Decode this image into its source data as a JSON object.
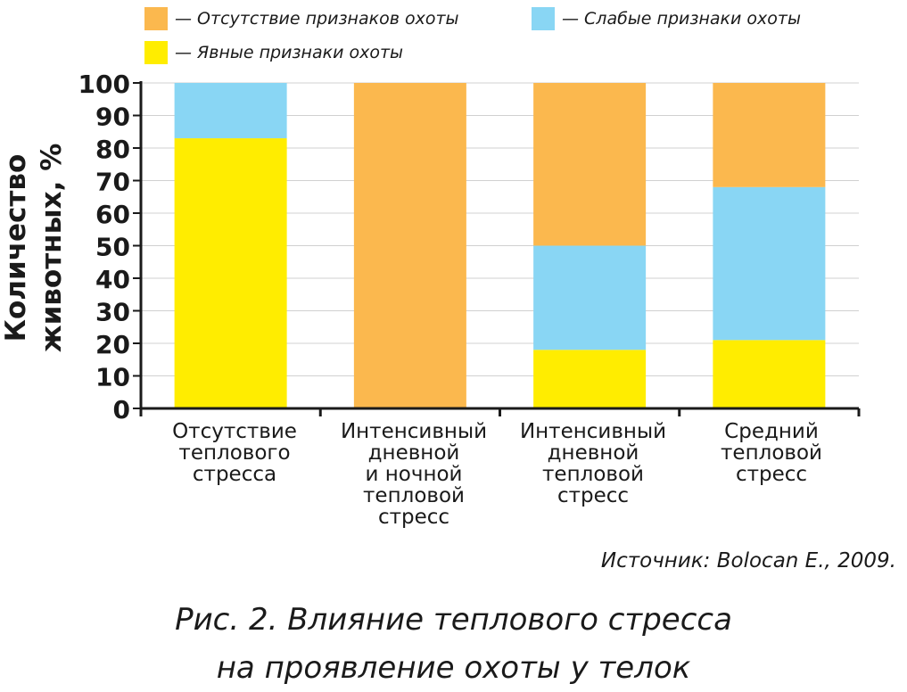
{
  "chart_data": {
    "type": "bar",
    "stacked": true,
    "categories": [
      "Отсутствие\nтеплового\nстресса",
      "Интенсивный\nдневной\nи ночной\nтепловой\nстресс",
      "Интенсивный\nдневной\nтепловой\nстресс",
      "Средний\nтепловой\nстресс"
    ],
    "series": [
      {
        "name": "— Явные признаки охоты",
        "color": "#FFED00",
        "values": [
          83,
          0,
          18,
          21
        ]
      },
      {
        "name": "— Слабые признаки охоты",
        "color": "#89D6F4",
        "values": [
          17,
          0,
          32,
          47
        ]
      },
      {
        "name": "— Отсутствие признаков охоты",
        "color": "#FBB84E",
        "values": [
          0,
          100,
          50,
          32
        ]
      }
    ],
    "ylabel": "Количество\nживотных, %",
    "ylim": [
      0,
      100
    ],
    "yticks": [
      0,
      10,
      20,
      30,
      40,
      50,
      60,
      70,
      80,
      90,
      100
    ],
    "grid": true
  },
  "legend": {
    "absent": "— Отсутствие признаков охоты",
    "weak": "— Слабые признаки охоты",
    "clear": "— Явные признаки охоты",
    "color_absent": "#FBB84E",
    "color_weak": "#89D6F4",
    "color_clear": "#FFED00"
  },
  "source": "Источник: Bolocan E., 2009.",
  "caption": "Рис. 2. Влияние теплового стресса\nна проявление охоты у телок"
}
